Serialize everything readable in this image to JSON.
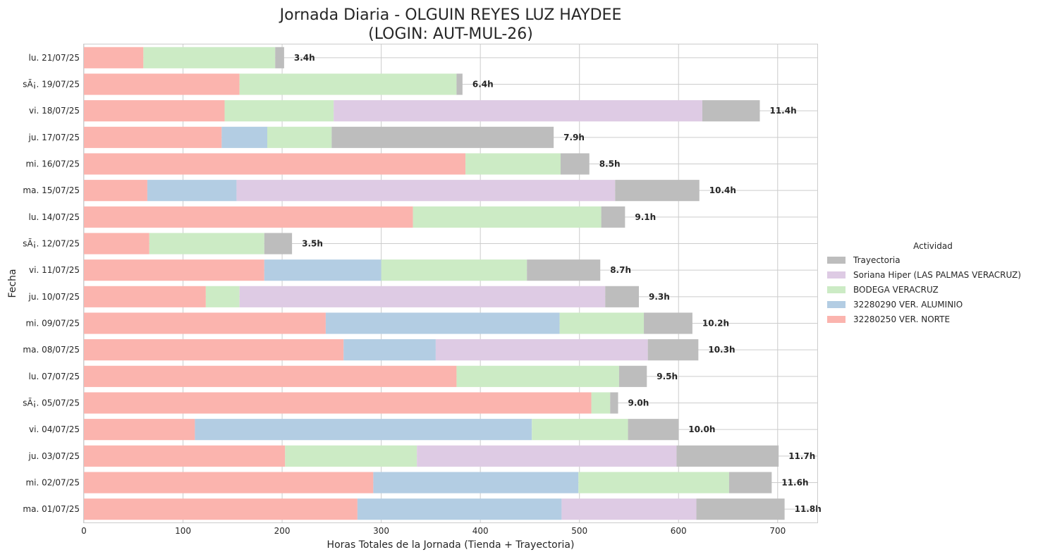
{
  "chart_data": {
    "type": "bar",
    "orientation": "horizontal",
    "stacked": true,
    "title_line1": "Jornada Diaria - OLGUIN REYES LUZ HAYDEE",
    "title_line2": "(LOGIN: AUT-MUL-26)",
    "xlabel": "Horas Totales de la Jornada (Tienda + Trayectoria)",
    "ylabel": "Fecha",
    "xlim": [
      0,
      740
    ],
    "xticks": [
      0,
      100,
      200,
      300,
      400,
      500,
      600,
      700
    ],
    "grid": true,
    "legend_title": "Actividad",
    "legend_position": "center-right",
    "categories": [
      "lu. 21/07/25",
      "sÃ¡. 19/07/25",
      "vi. 18/07/25",
      "ju. 17/07/25",
      "mi. 16/07/25",
      "ma. 15/07/25",
      "lu. 14/07/25",
      "sÃ¡. 12/07/25",
      "vi. 11/07/25",
      "ju. 10/07/25",
      "mi. 09/07/25",
      "ma. 08/07/25",
      "lu. 07/07/25",
      "sÃ¡. 05/07/25",
      "vi. 04/07/25",
      "ju. 03/07/25",
      "mi. 02/07/25",
      "ma. 01/07/25"
    ],
    "series": [
      {
        "name": "32280250 VER. NORTE",
        "color": "#fbb4ae",
        "values": [
          60,
          157,
          142,
          139,
          385,
          64,
          332,
          66,
          182,
          123,
          244,
          262,
          376,
          512,
          112,
          203,
          292,
          276
        ]
      },
      {
        "name": "32280290 VER. ALUMINIO",
        "color": "#b3cde3",
        "values": [
          0,
          0,
          0,
          46,
          0,
          90,
          0,
          0,
          118,
          0,
          236,
          93,
          0,
          0,
          340,
          0,
          207,
          206
        ]
      },
      {
        "name": "BODEGA VERACRUZ",
        "color": "#ccebc5",
        "values": [
          133,
          219,
          110,
          65,
          96,
          0,
          190,
          116,
          147,
          34,
          85,
          0,
          164,
          19,
          97,
          133,
          152,
          0
        ]
      },
      {
        "name": "Soriana Hiper (LAS PALMAS VERACRUZ)",
        "color": "#decbe4",
        "values": [
          0,
          0,
          372,
          0,
          0,
          382,
          0,
          0,
          0,
          369,
          0,
          214,
          0,
          0,
          0,
          262,
          0,
          136
        ]
      },
      {
        "name": "Trayectoria",
        "color": "#bdbdbd",
        "values": [
          9,
          6,
          58,
          224,
          29,
          85,
          24,
          28,
          74,
          34,
          49,
          51,
          28,
          8,
          51,
          103,
          43,
          89
        ]
      }
    ],
    "bar_labels": [
      "3.4h",
      "6.4h",
      "11.4h",
      "7.9h",
      "8.5h",
      "10.4h",
      "9.1h",
      "3.5h",
      "8.7h",
      "9.3h",
      "10.2h",
      "10.3h",
      "9.5h",
      "9.0h",
      "10.0h",
      "11.7h",
      "11.6h",
      "11.8h"
    ]
  }
}
